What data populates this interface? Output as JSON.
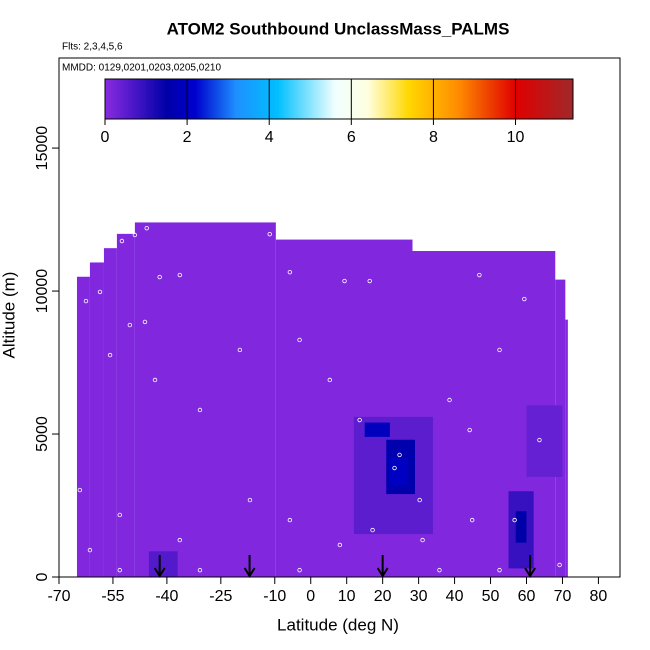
{
  "chart_data": {
    "type": "heatmap",
    "title": "ATOM2 Southbound UnclassMass_PALMS",
    "annotations": [
      "Flts: 2,3,4,5,6",
      "MMDD: 0129,0201,0203,0205,0210"
    ],
    "x_label": "Latitude (deg N)",
    "y_label": "Altitude (m)",
    "xlim": [
      -70,
      86
    ],
    "ylim": [
      0,
      18150
    ],
    "xticks": [
      -70,
      -55,
      -40,
      -25,
      -10,
      0,
      10,
      20,
      30,
      40,
      50,
      60,
      70,
      80
    ],
    "yticks": [
      0,
      5000,
      10000,
      15000
    ],
    "clim": [
      0,
      11.4
    ],
    "cticks": [
      0,
      2,
      4,
      6,
      8,
      10
    ],
    "colorscale": [
      [
        0,
        "#8a2be2"
      ],
      [
        1.5,
        "#0000a8"
      ],
      [
        2.2,
        "#0000cd"
      ],
      [
        3.2,
        "#1e90ff"
      ],
      [
        4.2,
        "#00bfff"
      ],
      [
        5.6,
        "#f0ffff"
      ],
      [
        6.4,
        "#ffffe0"
      ],
      [
        7.4,
        "#ffd700"
      ],
      [
        8.6,
        "#ff8c00"
      ],
      [
        10,
        "#e00000"
      ],
      [
        11.4,
        "#a0282a"
      ]
    ],
    "cells": [
      [
        -65,
        -61.4,
        0,
        10500,
        0.1
      ],
      [
        -61.4,
        -57.5,
        0,
        11000,
        0.1
      ],
      [
        -57.5,
        -53.9,
        0,
        11500,
        0.1
      ],
      [
        -53.9,
        -48.9,
        0,
        12000,
        0.1
      ],
      [
        -48.9,
        -9.7,
        0,
        12400,
        0.1
      ],
      [
        -9.7,
        28.3,
        0,
        11800,
        0.1
      ],
      [
        28.3,
        68,
        0,
        11400,
        0.1
      ],
      [
        68,
        70.8,
        0,
        10400,
        0.1
      ],
      [
        70.8,
        71.5,
        0,
        9000,
        0.1
      ],
      [
        12,
        34,
        1500,
        5600,
        0.5
      ],
      [
        60,
        70,
        3500,
        6000,
        0.4
      ],
      [
        55,
        62,
        300,
        3000,
        0.9
      ],
      [
        57,
        60,
        1200,
        2300,
        1.5
      ],
      [
        -45,
        -37,
        0,
        900,
        0.6
      ],
      [
        15,
        22,
        4900,
        5400,
        1.9
      ],
      [
        21,
        29,
        2900,
        4800,
        1.6
      ],
      [
        22,
        27,
        3200,
        4200,
        2.0
      ]
    ],
    "points": [
      [
        -52.5,
        11750
      ],
      [
        -48.9,
        11960
      ],
      [
        -45.6,
        12200
      ],
      [
        -11.4,
        11990
      ],
      [
        -42,
        10490
      ],
      [
        -36.4,
        10560
      ],
      [
        -62.5,
        9650
      ],
      [
        -58.6,
        9970
      ],
      [
        -50.3,
        8810
      ],
      [
        -46.1,
        8920
      ],
      [
        -5.8,
        10660
      ],
      [
        9.4,
        10350
      ],
      [
        16.4,
        10350
      ],
      [
        46.9,
        10560
      ],
      [
        59.4,
        9720
      ],
      [
        -55.8,
        7760
      ],
      [
        -43.3,
        6890
      ],
      [
        -30.8,
        5840
      ],
      [
        -19.7,
        7940
      ],
      [
        -3.1,
        8290
      ],
      [
        5.3,
        6890
      ],
      [
        13.6,
        5490
      ],
      [
        23.3,
        3810
      ],
      [
        24.7,
        4270
      ],
      [
        30.3,
        2690
      ],
      [
        38.6,
        6190
      ],
      [
        44.2,
        5140
      ],
      [
        52.5,
        7940
      ],
      [
        56.7,
        1990
      ],
      [
        63.6,
        4790
      ],
      [
        -64.2,
        3040
      ],
      [
        -53.1,
        2170
      ],
      [
        -36.4,
        1290
      ],
      [
        -16.9,
        2690
      ],
      [
        -5.8,
        1990
      ],
      [
        8.1,
        1120
      ],
      [
        17.2,
        1640
      ],
      [
        31.1,
        1290
      ],
      [
        44.9,
        1990
      ],
      [
        69.2,
        420
      ],
      [
        -53.1,
        240
      ],
      [
        -30.8,
        240
      ],
      [
        -3.1,
        240
      ],
      [
        35.8,
        240
      ],
      [
        52.5,
        240
      ],
      [
        -61.4,
        940
      ]
    ],
    "arrows": [
      -42,
      -17,
      20,
      61
    ]
  }
}
